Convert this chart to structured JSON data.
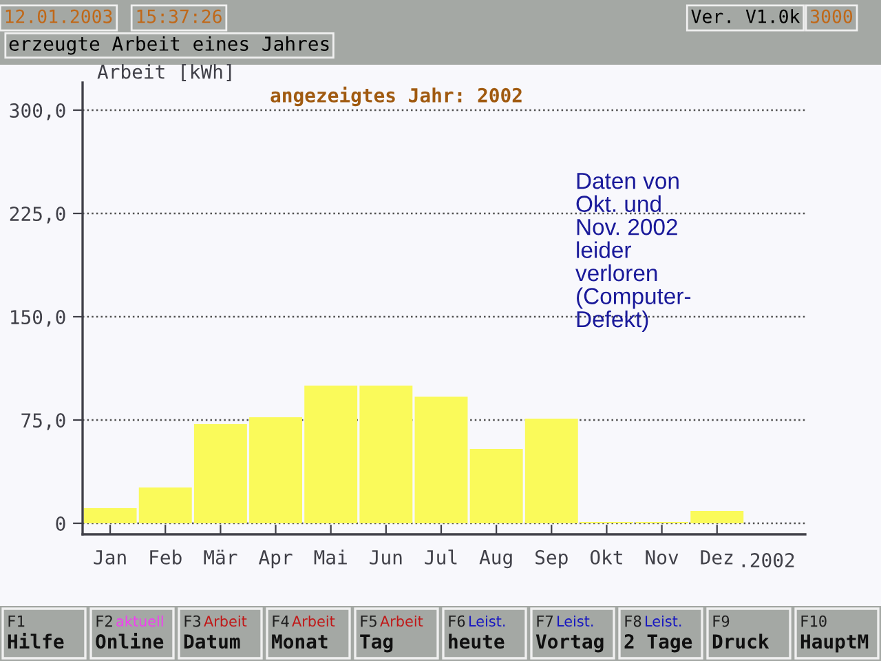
{
  "chart_data": {
    "type": "bar",
    "title": "erzeugte Arbeit eines Jahres",
    "subtitle": "angezeigtes Jahr: 2002",
    "ylabel": "Arbeit [kWh]",
    "categories": [
      "Jan",
      "Feb",
      "Mär",
      "Apr",
      "Mai",
      "Jun",
      "Jul",
      "Aug",
      "Sep",
      "Okt",
      "Nov",
      "Dez"
    ],
    "series": [
      {
        "color": "#fafa5a",
        "values": [
          11,
          26,
          72,
          77,
          100,
          100,
          92,
          54,
          76,
          1,
          1,
          9
        ]
      }
    ],
    "ylim": [
      -8,
      320
    ],
    "yticks": [
      {
        "value": 0,
        "label": "0"
      },
      {
        "value": 75,
        "label": "75,0"
      },
      {
        "value": 150,
        "label": "150,0"
      },
      {
        "value": 225,
        "label": "225,0"
      },
      {
        "value": 300,
        "label": "300,0"
      }
    ],
    "grid": "y",
    "line_style": "dotted",
    "annotations": [
      "12.01.2003",
      "15:37:26",
      "Ver. V1.0k",
      "3000",
      ".2002",
      "Daten von\nOkt. und\nNov. 2002\nleider\nverloren\n(Computer-\nDefekt)",
      "F1",
      "Hilfe",
      "F2 aktuell",
      "Online",
      "F3 Arbeit",
      "Datum",
      "F4 Arbeit",
      "Monat",
      "F5 Arbeit",
      "Tag",
      "F6 Leist.",
      "heute",
      "F7 Leist.",
      "Vortag",
      "F8 Leist.",
      "2 Tage",
      "F9",
      "Druck",
      "F10",
      "HauptM"
    ]
  }
}
